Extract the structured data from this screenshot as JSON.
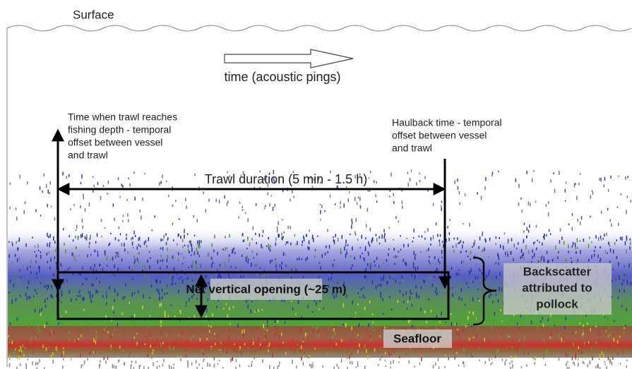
{
  "labels": {
    "surface": "Surface",
    "time_axis": "time (acoustic pings)",
    "trawl_start": {
      "lines": [
        "Time when trawl reaches",
        "fishing depth - temporal",
        "offset between vessel",
        "and trawl"
      ]
    },
    "haulback": {
      "lines": [
        "Haulback time - temporal",
        "offset between vessel",
        "and trawl"
      ]
    },
    "trawl_duration": "Trawl duration (5 min - 1.5 h)",
    "net_opening": "Net vertical opening (~25 m)",
    "backscatter": {
      "lines": [
        "Backscatter",
        "attributed to",
        "pollock"
      ]
    },
    "seafloor": "Seafloor"
  }
}
